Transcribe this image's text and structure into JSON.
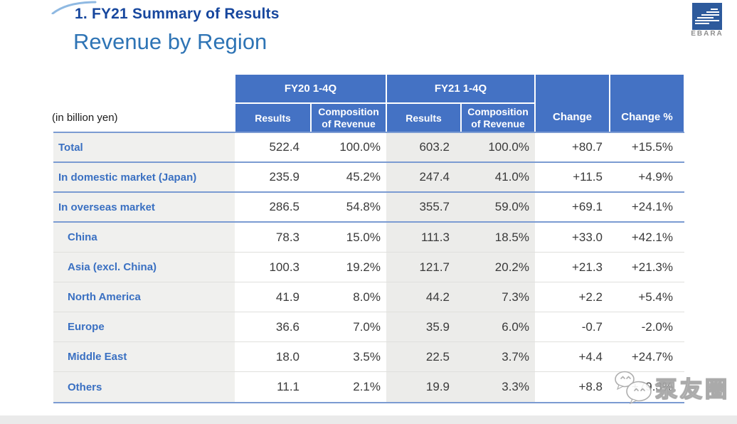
{
  "slide": {
    "heading": "1. FY21 Summary of Results",
    "subheading": "Revenue by Region",
    "logo_text": "EBARA"
  },
  "watermark": {
    "text": "泵友圈"
  },
  "colors": {
    "header_blue": "#4472c4",
    "heading_dark_blue": "#17479e",
    "subheading_blue": "#2e74b5",
    "row_label_blue": "#3a70c2",
    "separator_blue": "#7b9bd2",
    "fy21_band_gray": "#ececea",
    "label_column_gray": "#f0f0ee",
    "logo_blue": "#2d5a9c"
  },
  "chart_data": {
    "type": "table",
    "title": "Revenue by Region",
    "unit_label": "(in billion yen)",
    "header": {
      "fy20_group": "FY20 1-4Q",
      "fy21_group": "FY21 1-4Q",
      "results": "Results",
      "composition_line1": "Composition",
      "composition_line2": "of Revenue",
      "change": "Change",
      "change_pct": "Change %"
    },
    "rows": [
      {
        "label": "Total",
        "level": 0,
        "fy20_results": "522.4",
        "fy20_comp": "100.0%",
        "fy21_results": "603.2",
        "fy21_comp": "100.0%",
        "change": "+80.7",
        "change_pct": "+15.5%"
      },
      {
        "label": "In domestic market (Japan)",
        "level": 0,
        "fy20_results": "235.9",
        "fy20_comp": "45.2%",
        "fy21_results": "247.4",
        "fy21_comp": "41.0%",
        "change": "+11.5",
        "change_pct": "+4.9%"
      },
      {
        "label": "In overseas market",
        "level": 0,
        "fy20_results": "286.5",
        "fy20_comp": "54.8%",
        "fy21_results": "355.7",
        "fy21_comp": "59.0%",
        "change": "+69.1",
        "change_pct": "+24.1%"
      },
      {
        "label": "China",
        "level": 1,
        "fy20_results": "78.3",
        "fy20_comp": "15.0%",
        "fy21_results": "111.3",
        "fy21_comp": "18.5%",
        "change": "+33.0",
        "change_pct": "+42.1%"
      },
      {
        "label": "Asia (excl. China)",
        "level": 1,
        "fy20_results": "100.3",
        "fy20_comp": "19.2%",
        "fy21_results": "121.7",
        "fy21_comp": "20.2%",
        "change": "+21.3",
        "change_pct": "+21.3%"
      },
      {
        "label": "North America",
        "level": 1,
        "fy20_results": "41.9",
        "fy20_comp": "8.0%",
        "fy21_results": "44.2",
        "fy21_comp": "7.3%",
        "change": "+2.2",
        "change_pct": "+5.4%"
      },
      {
        "label": "Europe",
        "level": 1,
        "fy20_results": "36.6",
        "fy20_comp": "7.0%",
        "fy21_results": "35.9",
        "fy21_comp": "6.0%",
        "change": "-0.7",
        "change_pct": "-2.0%"
      },
      {
        "label": "Middle East",
        "level": 1,
        "fy20_results": "18.0",
        "fy20_comp": "3.5%",
        "fy21_results": "22.5",
        "fy21_comp": "3.7%",
        "change": "+4.4",
        "change_pct": "+24.7%"
      },
      {
        "label": "Others",
        "level": 1,
        "fy20_results": "11.1",
        "fy20_comp": "2.1%",
        "fy21_results": "19.9",
        "fy21_comp": "3.3%",
        "change": "+8.8",
        "change_pct": "+79.3%"
      }
    ]
  }
}
